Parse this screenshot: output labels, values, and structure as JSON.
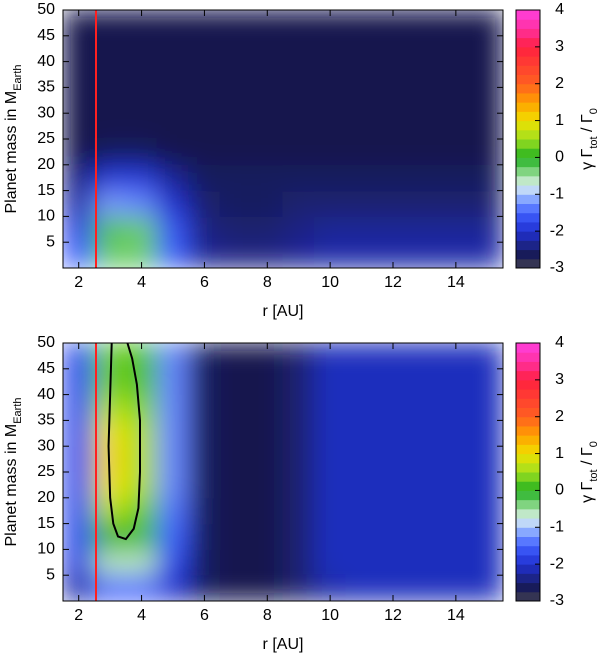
{
  "chart_data": [
    {
      "type": "heatmap",
      "xlabel": "r [AU]",
      "ylabel": [
        {
          "text": "Planet mass in M"
        },
        {
          "text": "Earth",
          "sub": true
        }
      ],
      "clabel": [
        {
          "text": "γ Γ"
        },
        {
          "text": "tot",
          "sub": true
        },
        {
          "text": " / Γ"
        },
        {
          "text": "0",
          "sub": true
        }
      ],
      "x": [
        2,
        3,
        4,
        5,
        6,
        7,
        8,
        9,
        10,
        11,
        12,
        13,
        14,
        15
      ],
      "y": [
        2.5,
        7.5,
        12.5,
        17.5,
        22.5,
        27.5,
        32.5,
        37.5,
        42.5,
        47.5
      ],
      "z": [
        [
          -1.5,
          -0.3,
          -0.3,
          -1.5,
          -2.3,
          -2.4,
          -2.4,
          -2.3,
          -2.2,
          -2.2,
          -2.2,
          -2.2,
          -2.2,
          -2.2
        ],
        [
          -1.8,
          -0.2,
          -0.3,
          -1.6,
          -2.4,
          -2.5,
          -2.5,
          -2.4,
          -2.3,
          -2.3,
          -2.3,
          -2.3,
          -2.3,
          -2.3
        ],
        [
          -2.2,
          -1.2,
          -1.3,
          -2.0,
          -2.5,
          -2.6,
          -2.6,
          -2.5,
          -2.5,
          -2.5,
          -2.5,
          -2.5,
          -2.5,
          -2.5
        ],
        [
          -2.4,
          -1.9,
          -1.9,
          -2.3,
          -2.6,
          -2.6,
          -2.6,
          -2.6,
          -2.6,
          -2.6,
          -2.6,
          -2.6,
          -2.6,
          -2.6
        ],
        [
          -2.7,
          -2.6,
          -2.6,
          -2.7,
          -2.7,
          -2.7,
          -2.7,
          -2.7,
          -2.7,
          -2.7,
          -2.7,
          -2.7,
          -2.7,
          -2.7
        ],
        [
          -2.7,
          -2.7,
          -2.7,
          -2.7,
          -2.7,
          -2.7,
          -2.7,
          -2.7,
          -2.7,
          -2.7,
          -2.7,
          -2.7,
          -2.7,
          -2.7
        ],
        [
          -2.7,
          -2.7,
          -2.7,
          -2.7,
          -2.7,
          -2.7,
          -2.7,
          -2.7,
          -2.7,
          -2.7,
          -2.7,
          -2.7,
          -2.7,
          -2.7
        ],
        [
          -2.7,
          -2.7,
          -2.7,
          -2.7,
          -2.7,
          -2.7,
          -2.7,
          -2.7,
          -2.7,
          -2.7,
          -2.7,
          -2.7,
          -2.7,
          -2.7
        ],
        [
          -2.7,
          -2.7,
          -2.7,
          -2.7,
          -2.7,
          -2.7,
          -2.7,
          -2.7,
          -2.7,
          -2.7,
          -2.7,
          -2.7,
          -2.7,
          -2.7
        ],
        [
          -2.7,
          -2.7,
          -2.7,
          -2.7,
          -2.7,
          -2.7,
          -2.7,
          -2.7,
          -2.7,
          -2.7,
          -2.7,
          -2.7,
          -2.7,
          -2.7
        ]
      ],
      "xlim": [
        1.5,
        15.5
      ],
      "ylim": [
        0,
        50
      ],
      "xticks": [
        2,
        4,
        6,
        8,
        10,
        12,
        14
      ],
      "yticks": [
        5,
        10,
        15,
        20,
        25,
        30,
        35,
        40,
        45,
        50
      ],
      "clim": [
        -3,
        4
      ],
      "cticks": [
        -3,
        -2,
        -1,
        0,
        1,
        2,
        3,
        4
      ],
      "colormap": [
        {
          "value": -3,
          "color": "#6a6a7a"
        },
        {
          "value": -2.8,
          "color": "#14143c"
        },
        {
          "value": -2.5,
          "color": "#1a2070"
        },
        {
          "value": -2,
          "color": "#2030d0"
        },
        {
          "value": -1.5,
          "color": "#4060ff"
        },
        {
          "value": -1,
          "color": "#a0c0ff"
        },
        {
          "value": -0.75,
          "color": "#e0f0f0"
        },
        {
          "value": -0.5,
          "color": "#a0e0a0"
        },
        {
          "value": 0,
          "color": "#20b020"
        },
        {
          "value": 0.5,
          "color": "#a0e020"
        },
        {
          "value": 1,
          "color": "#f0e000"
        },
        {
          "value": 1.5,
          "color": "#ffa000"
        },
        {
          "value": 2,
          "color": "#ff6020"
        },
        {
          "value": 3,
          "color": "#ff2040"
        },
        {
          "value": 3.5,
          "color": "#ff30a0"
        },
        {
          "value": 4,
          "color": "#ff40e0"
        }
      ],
      "vline": {
        "x": 2.55,
        "color": "#ff2020"
      }
    },
    {
      "type": "heatmap",
      "xlabel": "r [AU]",
      "ylabel": [
        {
          "text": "Planet mass in M"
        },
        {
          "text": "Earth",
          "sub": true
        }
      ],
      "clabel": [
        {
          "text": "γ Γ"
        },
        {
          "text": "tot",
          "sub": true
        },
        {
          "text": " / Γ"
        },
        {
          "text": "0",
          "sub": true
        }
      ],
      "x": [
        2,
        3,
        4,
        5,
        6,
        7,
        8,
        9,
        10,
        11,
        12,
        13,
        14,
        15
      ],
      "y": [
        2.5,
        7.5,
        12.5,
        17.5,
        22.5,
        27.5,
        32.5,
        37.5,
        42.5,
        47.5
      ],
      "z": [
        [
          -2.2,
          -1.5,
          -1.5,
          -2.0,
          -2.6,
          -2.7,
          -2.7,
          -2.5,
          -2.2,
          -2.1,
          -2.1,
          -2.1,
          -2.1,
          -2.1
        ],
        [
          -1.8,
          -0.6,
          -0.6,
          -1.7,
          -2.6,
          -2.7,
          -2.7,
          -2.5,
          -2.1,
          -2.1,
          -2.1,
          -2.1,
          -2.1,
          -2.1
        ],
        [
          -1.7,
          0.0,
          -0.1,
          -1.5,
          -2.6,
          -2.7,
          -2.7,
          -2.5,
          -2.1,
          -2.1,
          -2.1,
          -2.1,
          -2.1,
          -2.1
        ],
        [
          -1.7,
          0.6,
          0.3,
          -1.4,
          -2.6,
          -2.7,
          -2.7,
          -2.5,
          -2.1,
          -2.1,
          -2.1,
          -2.1,
          -2.1,
          -2.1
        ],
        [
          -1.7,
          1.0,
          0.6,
          -1.3,
          -2.6,
          -2.7,
          -2.7,
          -2.5,
          -2.1,
          -2.1,
          -2.1,
          -2.1,
          -2.1,
          -2.1
        ],
        [
          -1.7,
          1.1,
          0.6,
          -1.3,
          -2.6,
          -2.7,
          -2.7,
          -2.5,
          -2.1,
          -2.1,
          -2.1,
          -2.1,
          -2.1,
          -2.1
        ],
        [
          -1.7,
          1.0,
          0.6,
          -1.3,
          -2.6,
          -2.7,
          -2.7,
          -2.5,
          -2.1,
          -2.1,
          -2.1,
          -2.1,
          -2.1,
          -2.1
        ],
        [
          -1.7,
          0.6,
          0.4,
          -1.3,
          -2.6,
          -2.7,
          -2.7,
          -2.5,
          -2.1,
          -2.1,
          -2.1,
          -2.1,
          -2.1,
          -2.1
        ],
        [
          -1.7,
          0.3,
          0.2,
          -1.3,
          -2.6,
          -2.7,
          -2.7,
          -2.5,
          -2.1,
          -2.1,
          -2.1,
          -2.1,
          -2.1,
          -2.1
        ],
        [
          -1.7,
          0.3,
          0.2,
          -1.3,
          -2.6,
          -2.7,
          -2.7,
          -2.5,
          -2.1,
          -2.1,
          -2.1,
          -2.1,
          -2.1,
          -2.1
        ]
      ],
      "xlim": [
        1.5,
        15.5
      ],
      "ylim": [
        0,
        50
      ],
      "xticks": [
        2,
        4,
        6,
        8,
        10,
        12,
        14
      ],
      "yticks": [
        5,
        10,
        15,
        20,
        25,
        30,
        35,
        40,
        45,
        50
      ],
      "clim": [
        -3,
        4
      ],
      "cticks": [
        -3,
        -2,
        -1,
        0,
        1,
        2,
        3,
        4
      ],
      "colormap": [
        {
          "value": -3,
          "color": "#6a6a7a"
        },
        {
          "value": -2.8,
          "color": "#14143c"
        },
        {
          "value": -2.5,
          "color": "#1a2070"
        },
        {
          "value": -2,
          "color": "#2030d0"
        },
        {
          "value": -1.5,
          "color": "#4060ff"
        },
        {
          "value": -1,
          "color": "#a0c0ff"
        },
        {
          "value": -0.75,
          "color": "#e0f0f0"
        },
        {
          "value": -0.5,
          "color": "#a0e0a0"
        },
        {
          "value": 0,
          "color": "#20b020"
        },
        {
          "value": 0.5,
          "color": "#a0e020"
        },
        {
          "value": 1,
          "color": "#f0e000"
        },
        {
          "value": 1.5,
          "color": "#ffa000"
        },
        {
          "value": 2,
          "color": "#ff6020"
        },
        {
          "value": 3,
          "color": "#ff2040"
        },
        {
          "value": 3.5,
          "color": "#ff30a0"
        },
        {
          "value": 4,
          "color": "#ff40e0"
        }
      ],
      "vline": {
        "x": 2.55,
        "color": "#ff2020"
      },
      "contour": {
        "x": [
          3.05,
          3.0,
          2.95,
          3.0,
          3.1,
          3.25,
          3.5,
          3.75,
          3.9,
          3.95,
          3.95,
          3.85,
          3.7,
          3.55
        ],
        "y": [
          50,
          40,
          30,
          20,
          15,
          12.5,
          12,
          14,
          18,
          25,
          35,
          42,
          47,
          50
        ],
        "color": "#000000"
      }
    }
  ]
}
